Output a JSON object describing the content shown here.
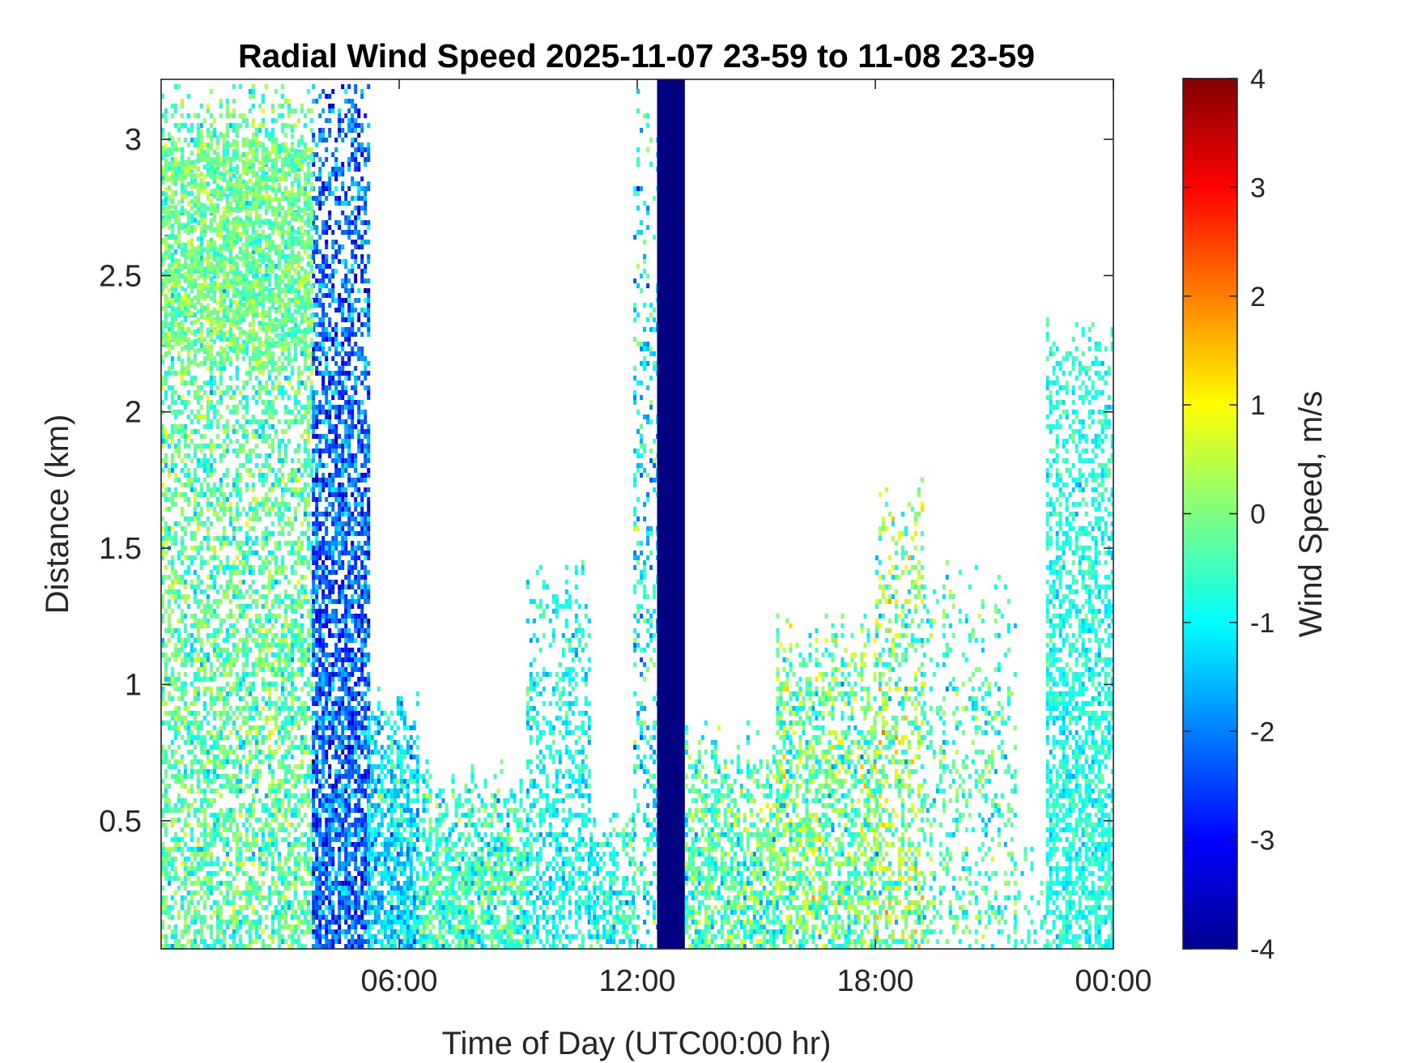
{
  "chart_data": {
    "type": "heatmap",
    "title": "Radial Wind Speed 2025-11-07 23-59 to 11-08 23-59",
    "xlabel": "Time of Day (UTC00:00 hr)",
    "ylabel": "Distance (km)",
    "colorbar_label": "Wind Speed, m/s",
    "x_unit": "hours",
    "xlim": [
      0,
      24
    ],
    "ylim": [
      0.03,
      3.22
    ],
    "clim": [
      -4,
      4
    ],
    "colormap": "jet",
    "grid": false,
    "x_ticks": [
      {
        "value": 6,
        "label": "06:00"
      },
      {
        "value": 12,
        "label": "12:00"
      },
      {
        "value": 18,
        "label": "18:00"
      },
      {
        "value": 24,
        "label": "00:00"
      }
    ],
    "y_ticks": [
      {
        "value": 0.5,
        "label": "0.5"
      },
      {
        "value": 1,
        "label": "1"
      },
      {
        "value": 1.5,
        "label": "1.5"
      },
      {
        "value": 2,
        "label": "2"
      },
      {
        "value": 2.5,
        "label": "2.5"
      },
      {
        "value": 3,
        "label": "3"
      }
    ],
    "colorbar_ticks": [
      {
        "value": 4,
        "label": "4"
      },
      {
        "value": 3,
        "label": "3"
      },
      {
        "value": 2,
        "label": "2"
      },
      {
        "value": 1,
        "label": "1"
      },
      {
        "value": 0,
        "label": "0"
      },
      {
        "value": -1,
        "label": "-1"
      },
      {
        "value": -2,
        "label": "-2"
      },
      {
        "value": -3,
        "label": "-3"
      },
      {
        "value": -4,
        "label": "-4"
      }
    ],
    "time_blocks": [
      {
        "t": [
          0.0,
          3.8
        ],
        "top_km": 3.2,
        "mean": -0.3,
        "spread": 0.8,
        "fill": 0.55
      },
      {
        "t": [
          3.8,
          5.2
        ],
        "top_km": 3.2,
        "mean": -2.2,
        "spread": 0.9,
        "fill": 0.75
      },
      {
        "t": [
          5.2,
          6.5
        ],
        "top_km": 0.95,
        "mean": -1.2,
        "spread": 0.8,
        "fill": 0.8
      },
      {
        "t": [
          6.5,
          9.2
        ],
        "top_km": 0.65,
        "mean": -0.6,
        "spread": 0.8,
        "fill": 0.75
      },
      {
        "t": [
          9.2,
          10.8
        ],
        "top_km": 1.4,
        "mean": -0.9,
        "spread": 0.6,
        "fill": 0.45
      },
      {
        "t": [
          10.8,
          11.9
        ],
        "top_km": 0.55,
        "mean": -0.8,
        "spread": 0.7,
        "fill": 0.6
      },
      {
        "t": [
          11.9,
          12.5
        ],
        "top_km": 3.2,
        "mean": -1.0,
        "spread": 1.0,
        "fill": 0.3
      },
      {
        "t": [
          12.5,
          13.2
        ],
        "top_km": 3.22,
        "mean": -4.0,
        "spread": 0.0,
        "fill": 1.0
      },
      {
        "t": [
          13.2,
          15.5
        ],
        "top_km": 0.8,
        "mean": -0.4,
        "spread": 0.9,
        "fill": 0.7
      },
      {
        "t": [
          15.5,
          18.0
        ],
        "top_km": 1.2,
        "mean": -0.2,
        "spread": 1.0,
        "fill": 0.6
      },
      {
        "t": [
          18.0,
          19.2
        ],
        "top_km": 1.7,
        "mean": 0.0,
        "spread": 1.1,
        "fill": 0.45
      },
      {
        "t": [
          19.2,
          21.5
        ],
        "top_km": 1.4,
        "mean": -0.5,
        "spread": 0.8,
        "fill": 0.25
      },
      {
        "t": [
          21.5,
          22.3
        ],
        "top_km": 0.4,
        "mean": -0.6,
        "spread": 0.6,
        "fill": 0.2
      },
      {
        "t": [
          22.3,
          24.0
        ],
        "top_km": 2.3,
        "mean": -0.8,
        "spread": 0.5,
        "fill": 0.6
      }
    ],
    "upper_layer": {
      "t": [
        0.0,
        3.8
      ],
      "km": [
        2.2,
        3.0
      ],
      "mean": -0.1
    }
  }
}
